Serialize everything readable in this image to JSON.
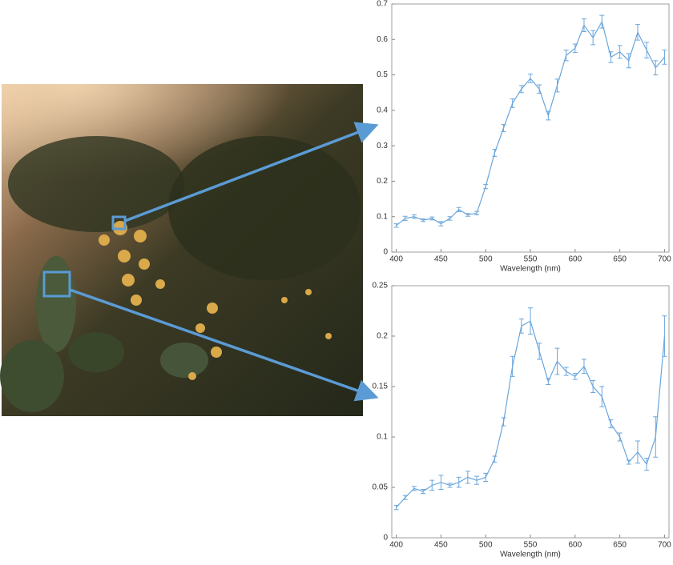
{
  "chart_data": [
    {
      "type": "line",
      "x_label": "Wavelength (nm)",
      "x": [
        400,
        410,
        420,
        430,
        440,
        450,
        460,
        470,
        480,
        490,
        500,
        510,
        520,
        530,
        540,
        550,
        560,
        570,
        580,
        590,
        600,
        610,
        620,
        630,
        640,
        650,
        660,
        670,
        680,
        690,
        700
      ],
      "series": [
        {
          "color": "#6aa6dc",
          "values": [
            0.075,
            0.095,
            0.1,
            0.09,
            0.095,
            0.08,
            0.095,
            0.12,
            0.105,
            0.11,
            0.185,
            0.28,
            0.35,
            0.42,
            0.46,
            0.49,
            0.46,
            0.385,
            0.47,
            0.555,
            0.575,
            0.64,
            0.605,
            0.65,
            0.55,
            0.565,
            0.54,
            0.62,
            0.57,
            0.52,
            0.55
          ],
          "errors": [
            0.005,
            0.006,
            0.005,
            0.004,
            0.004,
            0.006,
            0.005,
            0.006,
            0.004,
            0.005,
            0.006,
            0.01,
            0.01,
            0.012,
            0.01,
            0.012,
            0.012,
            0.012,
            0.018,
            0.015,
            0.012,
            0.018,
            0.02,
            0.018,
            0.015,
            0.018,
            0.02,
            0.022,
            0.022,
            0.02,
            0.02
          ]
        }
      ],
      "xlim": [
        395,
        705
      ],
      "xticks": [
        400,
        450,
        500,
        550,
        600,
        650,
        700
      ],
      "ylim": [
        0,
        0.7
      ],
      "yticks": [
        0,
        0.1,
        0.2,
        0.3,
        0.4,
        0.5,
        0.6,
        0.7
      ]
    },
    {
      "type": "line",
      "x_label": "Wavelength (nm)",
      "x": [
        400,
        410,
        420,
        430,
        440,
        450,
        460,
        470,
        480,
        490,
        500,
        510,
        520,
        530,
        540,
        550,
        560,
        570,
        580,
        590,
        600,
        610,
        620,
        630,
        640,
        650,
        660,
        670,
        680,
        690,
        700
      ],
      "series": [
        {
          "color": "#6aa6dc",
          "values": [
            0.03,
            0.04,
            0.049,
            0.046,
            0.052,
            0.055,
            0.052,
            0.055,
            0.06,
            0.057,
            0.06,
            0.078,
            0.115,
            0.17,
            0.21,
            0.215,
            0.185,
            0.155,
            0.175,
            0.165,
            0.16,
            0.17,
            0.15,
            0.14,
            0.113,
            0.1,
            0.075,
            0.085,
            0.073,
            0.1,
            0.2
          ],
          "errors": [
            0.002,
            0.002,
            0.002,
            0.002,
            0.005,
            0.007,
            0.002,
            0.005,
            0.006,
            0.004,
            0.004,
            0.003,
            0.004,
            0.01,
            0.007,
            0.013,
            0.008,
            0.003,
            0.013,
            0.004,
            0.003,
            0.007,
            0.006,
            0.01,
            0.004,
            0.004,
            0.002,
            0.011,
            0.006,
            0.02,
            0.02
          ]
        }
      ],
      "xlim": [
        395,
        705
      ],
      "xticks": [
        400,
        450,
        500,
        550,
        600,
        650,
        700
      ],
      "ylim": [
        0,
        0.25
      ],
      "yticks": [
        0,
        0.05,
        0.1,
        0.15,
        0.2,
        0.25
      ]
    }
  ]
}
